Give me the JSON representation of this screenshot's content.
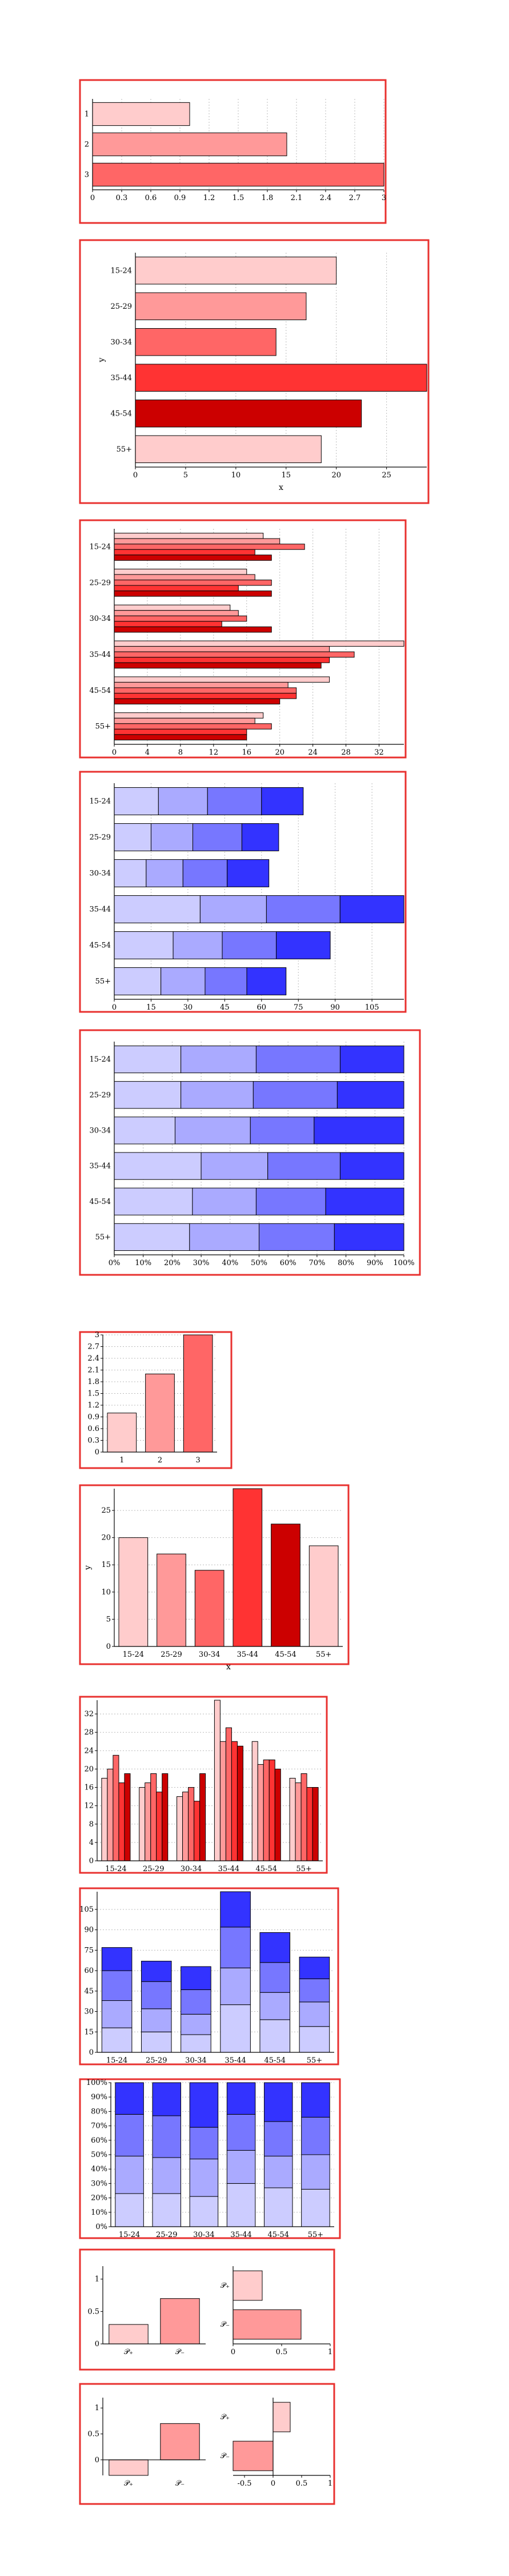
{
  "colors": {
    "frame": "#e8312f",
    "grid": "#b9b9b9",
    "reds": [
      "#ffcccc",
      "#ff9999",
      "#ff6666",
      "#ff3333",
      "#cc0000"
    ],
    "blues": [
      "#ccccff",
      "#aaaaff",
      "#7777ff",
      "#3333ff"
    ]
  },
  "chart_data": [
    {
      "id": "c1",
      "type": "bar",
      "orientation": "horizontal",
      "categories": [
        "1",
        "2",
        "3"
      ],
      "values": [
        1.0,
        2.0,
        3.0
      ],
      "xlim": [
        0,
        3
      ],
      "xticks": [
        "0",
        "0.3",
        "0.6",
        "0.9",
        "1.2",
        "1.5",
        "1.8",
        "2.1",
        "2.4",
        "2.7",
        "3"
      ],
      "grid": true
    },
    {
      "id": "c2",
      "type": "bar",
      "orientation": "horizontal",
      "categories": [
        "15-24",
        "25-29",
        "30-34",
        "35-44",
        "45-54",
        "55+"
      ],
      "values": [
        20,
        17,
        14,
        29,
        22.5,
        18.5
      ],
      "xlim": [
        0,
        29
      ],
      "xticks": [
        "0",
        "5",
        "10",
        "15",
        "20",
        "25"
      ],
      "xlabel": "x",
      "ylabel": "y",
      "grid": true
    },
    {
      "id": "c3",
      "type": "bar",
      "orientation": "horizontal",
      "grouped": true,
      "categories": [
        "15-24",
        "25-29",
        "30-34",
        "35-44",
        "45-54",
        "55+"
      ],
      "series": [
        {
          "values": [
            18,
            16,
            14,
            35,
            26,
            18
          ]
        },
        {
          "values": [
            20,
            17,
            15,
            26,
            21,
            17
          ]
        },
        {
          "values": [
            23,
            19,
            16,
            29,
            22,
            19
          ]
        },
        {
          "values": [
            17,
            15,
            13,
            26,
            22,
            16
          ]
        },
        {
          "values": [
            19,
            19,
            19,
            25,
            20,
            16
          ]
        }
      ],
      "xlim": [
        0,
        35
      ],
      "xticks": [
        "0",
        "4",
        "8",
        "12",
        "16",
        "20",
        "24",
        "28",
        "32"
      ],
      "grid": true
    },
    {
      "id": "c4",
      "type": "bar",
      "orientation": "horizontal",
      "stacked": true,
      "categories": [
        "15-24",
        "25-29",
        "30-34",
        "35-44",
        "45-54",
        "55+"
      ],
      "series": [
        {
          "values": [
            18,
            15,
            13,
            35,
            24,
            19
          ]
        },
        {
          "values": [
            20,
            17,
            15,
            27,
            20,
            18
          ]
        },
        {
          "values": [
            22,
            20,
            18,
            30,
            22,
            17
          ]
        },
        {
          "values": [
            17,
            15,
            17,
            26,
            22,
            16
          ]
        }
      ],
      "xlim": [
        0,
        118
      ],
      "xticks": [
        "0",
        "15",
        "30",
        "45",
        "60",
        "75",
        "90",
        "105"
      ],
      "grid": true
    },
    {
      "id": "c5",
      "type": "bar",
      "orientation": "horizontal",
      "stacked": true,
      "percent": true,
      "categories": [
        "15-24",
        "25-29",
        "30-34",
        "35-44",
        "45-54",
        "55+"
      ],
      "series": [
        {
          "values": [
            23,
            23,
            21,
            30,
            27,
            26
          ]
        },
        {
          "values": [
            26,
            25,
            26,
            23,
            22,
            24
          ]
        },
        {
          "values": [
            29,
            29,
            22,
            25,
            24,
            26
          ]
        },
        {
          "values": [
            22,
            23,
            31,
            22,
            27,
            24
          ]
        }
      ],
      "xlim": [
        0,
        100
      ],
      "xticks": [
        "0%",
        "10%",
        "20%",
        "30%",
        "40%",
        "50%",
        "60%",
        "70%",
        "80%",
        "90%",
        "100%"
      ],
      "grid": true
    },
    {
      "id": "c6",
      "type": "bar",
      "orientation": "vertical",
      "categories": [
        "1",
        "2",
        "3"
      ],
      "values": [
        1.0,
        2.0,
        3.0
      ],
      "ylim": [
        0,
        3
      ],
      "yticks": [
        "0",
        "0.3",
        "0.6",
        "0.9",
        "1.2",
        "1.5",
        "1.8",
        "2.1",
        "2.4",
        "2.7",
        "3"
      ],
      "grid": true
    },
    {
      "id": "c7",
      "type": "bar",
      "orientation": "vertical",
      "categories": [
        "15-24",
        "25-29",
        "30-34",
        "35-44",
        "45-54",
        "55+"
      ],
      "values": [
        20,
        17,
        14,
        29,
        22.5,
        18.5
      ],
      "ylim": [
        0,
        29
      ],
      "yticks": [
        "0",
        "5",
        "10",
        "15",
        "20",
        "25"
      ],
      "xlabel": "x",
      "ylabel": "y",
      "grid": true
    },
    {
      "id": "c8",
      "type": "bar",
      "orientation": "vertical",
      "grouped": true,
      "categories": [
        "15-24",
        "25-29",
        "30-34",
        "35-44",
        "45-54",
        "55+"
      ],
      "series": [
        {
          "values": [
            18,
            16,
            14,
            35,
            26,
            18
          ]
        },
        {
          "values": [
            20,
            17,
            15,
            26,
            21,
            17
          ]
        },
        {
          "values": [
            23,
            19,
            16,
            29,
            22,
            19
          ]
        },
        {
          "values": [
            17,
            15,
            13,
            26,
            22,
            16
          ]
        },
        {
          "values": [
            19,
            19,
            19,
            25,
            20,
            16
          ]
        }
      ],
      "ylim": [
        0,
        35
      ],
      "yticks": [
        "0",
        "4",
        "8",
        "12",
        "16",
        "20",
        "24",
        "28",
        "32"
      ],
      "grid": true
    },
    {
      "id": "c9",
      "type": "bar",
      "orientation": "vertical",
      "stacked": true,
      "categories": [
        "15-24",
        "25-29",
        "30-34",
        "35-44",
        "45-54",
        "55+"
      ],
      "series": [
        {
          "values": [
            18,
            15,
            13,
            35,
            24,
            19
          ]
        },
        {
          "values": [
            20,
            17,
            15,
            27,
            20,
            18
          ]
        },
        {
          "values": [
            22,
            20,
            18,
            30,
            22,
            17
          ]
        },
        {
          "values": [
            17,
            15,
            17,
            26,
            22,
            16
          ]
        }
      ],
      "ylim": [
        0,
        118
      ],
      "yticks": [
        "0",
        "15",
        "30",
        "45",
        "60",
        "75",
        "90",
        "105"
      ],
      "grid": true
    },
    {
      "id": "c10",
      "type": "bar",
      "orientation": "vertical",
      "stacked": true,
      "percent": true,
      "categories": [
        "15-24",
        "25-29",
        "30-34",
        "35-44",
        "45-54",
        "55+"
      ],
      "series": [
        {
          "values": [
            23,
            23,
            21,
            30,
            27,
            26
          ]
        },
        {
          "values": [
            26,
            25,
            26,
            23,
            22,
            24
          ]
        },
        {
          "values": [
            29,
            29,
            22,
            25,
            24,
            26
          ]
        },
        {
          "values": [
            22,
            23,
            31,
            22,
            27,
            24
          ]
        }
      ],
      "ylim": [
        0,
        100
      ],
      "yticks": [
        "0%",
        "10%",
        "20%",
        "30%",
        "40%",
        "50%",
        "60%",
        "70%",
        "80%",
        "90%",
        "100%"
      ],
      "grid": true
    },
    {
      "id": "c11",
      "type": "bar",
      "orientation": "vertical",
      "categories": [
        "𝒫₊",
        "𝒫₋"
      ],
      "values": [
        0.3,
        0.7
      ],
      "ylim": [
        0,
        1.2
      ],
      "yticks": [
        "0",
        "0.5",
        "1"
      ]
    },
    {
      "id": "c12",
      "type": "bar",
      "orientation": "horizontal",
      "categories": [
        "𝒫₊",
        "𝒫₋"
      ],
      "values": [
        0.3,
        0.7
      ],
      "xlim": [
        0,
        1
      ],
      "xticks": [
        "0",
        "0.5",
        "1"
      ]
    },
    {
      "id": "c13",
      "type": "bar",
      "orientation": "vertical",
      "categories": [
        "𝒫₊",
        "𝒫₋"
      ],
      "values": [
        -0.3,
        0.7
      ],
      "ylim": [
        -0.3,
        1.2
      ],
      "yticks": [
        "0",
        "0.5",
        "1"
      ]
    },
    {
      "id": "c14",
      "type": "bar",
      "orientation": "horizontal",
      "categories": [
        "𝒫₊",
        "𝒫₋"
      ],
      "values": [
        0.3,
        -0.7
      ],
      "xlim": [
        -0.7,
        1
      ],
      "xticks": [
        "-0.5",
        "0",
        "0.5",
        "1"
      ]
    }
  ]
}
